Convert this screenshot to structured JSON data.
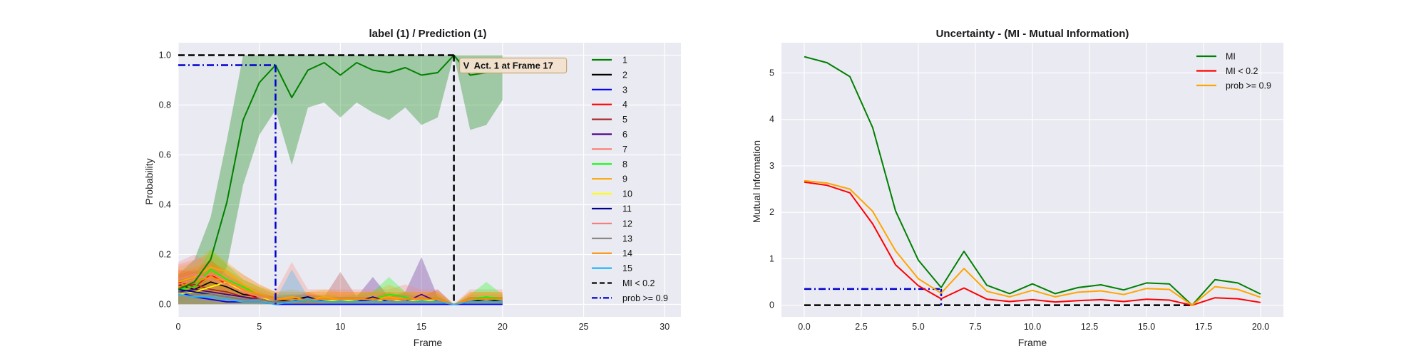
{
  "chart_data": [
    {
      "type": "line",
      "title": "label (1) / Prediction (1)",
      "xlabel": "Frame",
      "ylabel": "Probability",
      "xlim": [
        0,
        31
      ],
      "ylim": [
        -0.05,
        1.05
      ],
      "xticks": [
        "0",
        "5",
        "10",
        "15",
        "20",
        "25",
        "30"
      ],
      "yticks": [
        "0.0",
        "0.2",
        "0.4",
        "0.6",
        "0.8",
        "1.0"
      ],
      "grid": true,
      "legend_position": "right",
      "x": [
        0,
        1,
        2,
        3,
        4,
        5,
        6,
        7,
        8,
        9,
        10,
        11,
        12,
        13,
        14,
        15,
        16,
        17,
        18,
        19,
        20
      ],
      "series": [
        {
          "name": "1",
          "color": "#008000",
          "values": [
            0.06,
            0.09,
            0.18,
            0.41,
            0.74,
            0.89,
            0.96,
            0.83,
            0.94,
            0.97,
            0.92,
            0.97,
            0.94,
            0.93,
            0.95,
            0.92,
            0.93,
            1.0,
            0.92,
            0.93,
            0.96
          ],
          "band_low": [
            0.01,
            0.02,
            0.05,
            0.15,
            0.48,
            0.68,
            0.78,
            0.56,
            0.79,
            0.81,
            0.75,
            0.81,
            0.77,
            0.74,
            0.79,
            0.72,
            0.75,
            1.0,
            0.7,
            0.72,
            0.82
          ],
          "band_high": [
            0.12,
            0.18,
            0.35,
            0.66,
            1.0,
            1.0,
            1.0,
            1.0,
            1.0,
            1.0,
            1.0,
            1.0,
            1.0,
            1.0,
            1.0,
            1.0,
            1.0,
            1.0,
            1.0,
            1.0,
            1.0
          ]
        },
        {
          "name": "2",
          "color": "#000000",
          "values": [
            0.08,
            0.06,
            0.09,
            0.07,
            0.04,
            0.03,
            0.01,
            0.02,
            0.03,
            0.01,
            0.02,
            0.01,
            0.02,
            0.01,
            0.02,
            0.01,
            0.02,
            0.0,
            0.01,
            0.02,
            0.01
          ]
        },
        {
          "name": "3",
          "color": "#0000ff",
          "values": [
            0.05,
            0.03,
            0.02,
            0.01,
            0.01,
            0.01,
            0.0,
            0.0,
            0.0,
            0.0,
            0.0,
            0.0,
            0.0,
            0.0,
            0.0,
            0.0,
            0.0,
            0.0,
            0.0,
            0.0,
            0.0
          ]
        },
        {
          "name": "4",
          "color": "#ff0000",
          "values": [
            0.09,
            0.07,
            0.12,
            0.08,
            0.05,
            0.02,
            0.01,
            0.01,
            0.02,
            0.01,
            0.01,
            0.01,
            0.01,
            0.01,
            0.02,
            0.01,
            0.01,
            0.0,
            0.01,
            0.01,
            0.01
          ],
          "band_high": [
            0.14,
            0.13,
            0.18,
            0.12,
            0.08,
            0.05,
            0.03,
            0.04,
            0.04,
            0.03,
            0.03,
            0.03,
            0.03,
            0.03,
            0.04,
            0.03,
            0.03,
            0.0,
            0.03,
            0.03,
            0.03
          ]
        },
        {
          "name": "5",
          "color": "#a52a2a",
          "values": [
            0.07,
            0.08,
            0.06,
            0.05,
            0.03,
            0.02,
            0.01,
            0.01,
            0.02,
            0.01,
            0.02,
            0.01,
            0.01,
            0.02,
            0.01,
            0.01,
            0.01,
            0.0,
            0.01,
            0.01,
            0.01
          ],
          "band_high": [
            0.12,
            0.14,
            0.11,
            0.08,
            0.06,
            0.04,
            0.03,
            0.03,
            0.05,
            0.03,
            0.13,
            0.03,
            0.03,
            0.05,
            0.03,
            0.03,
            0.06,
            0.0,
            0.03,
            0.03,
            0.03
          ]
        },
        {
          "name": "6",
          "color": "#4b0082",
          "values": [
            0.05,
            0.06,
            0.05,
            0.04,
            0.03,
            0.02,
            0.01,
            0.01,
            0.02,
            0.01,
            0.01,
            0.01,
            0.02,
            0.01,
            0.01,
            0.04,
            0.01,
            0.0,
            0.01,
            0.01,
            0.01
          ],
          "band_high": [
            0.1,
            0.1,
            0.09,
            0.07,
            0.05,
            0.04,
            0.03,
            0.03,
            0.04,
            0.03,
            0.03,
            0.03,
            0.11,
            0.03,
            0.05,
            0.19,
            0.03,
            0.0,
            0.03,
            0.03,
            0.03
          ]
        },
        {
          "name": "7",
          "color": "#fa8072",
          "values": [
            0.08,
            0.1,
            0.12,
            0.1,
            0.06,
            0.04,
            0.02,
            0.03,
            0.02,
            0.02,
            0.02,
            0.02,
            0.02,
            0.02,
            0.03,
            0.02,
            0.02,
            0.0,
            0.02,
            0.02,
            0.02
          ],
          "band_high": [
            0.16,
            0.18,
            0.2,
            0.16,
            0.12,
            0.08,
            0.05,
            0.17,
            0.06,
            0.06,
            0.06,
            0.06,
            0.06,
            0.06,
            0.08,
            0.06,
            0.06,
            0.0,
            0.06,
            0.06,
            0.06
          ]
        },
        {
          "name": "8",
          "color": "#00ff00",
          "values": [
            0.06,
            0.07,
            0.14,
            0.1,
            0.07,
            0.04,
            0.02,
            0.02,
            0.01,
            0.02,
            0.01,
            0.02,
            0.02,
            0.04,
            0.03,
            0.01,
            0.02,
            0.0,
            0.02,
            0.03,
            0.02
          ],
          "band_high": [
            0.1,
            0.12,
            0.22,
            0.16,
            0.1,
            0.07,
            0.04,
            0.04,
            0.03,
            0.04,
            0.03,
            0.04,
            0.05,
            0.11,
            0.05,
            0.03,
            0.04,
            0.0,
            0.04,
            0.09,
            0.04
          ]
        },
        {
          "name": "9",
          "color": "#ffa500",
          "values": [
            0.09,
            0.11,
            0.15,
            0.13,
            0.08,
            0.04,
            0.02,
            0.03,
            0.02,
            0.03,
            0.02,
            0.02,
            0.02,
            0.03,
            0.02,
            0.02,
            0.02,
            0.0,
            0.02,
            0.02,
            0.02
          ],
          "band_high": [
            0.15,
            0.17,
            0.22,
            0.17,
            0.12,
            0.08,
            0.05,
            0.06,
            0.05,
            0.06,
            0.05,
            0.05,
            0.05,
            0.08,
            0.05,
            0.05,
            0.05,
            0.0,
            0.05,
            0.05,
            0.05
          ]
        },
        {
          "name": "10",
          "color": "#ffff00",
          "values": [
            0.04,
            0.05,
            0.07,
            0.09,
            0.05,
            0.03,
            0.01,
            0.01,
            0.01,
            0.01,
            0.02,
            0.01,
            0.01,
            0.02,
            0.01,
            0.02,
            0.01,
            0.0,
            0.01,
            0.01,
            0.01
          ]
        },
        {
          "name": "11",
          "color": "#00008b",
          "values": [
            0.06,
            0.05,
            0.04,
            0.03,
            0.02,
            0.02,
            0.01,
            0.01,
            0.03,
            0.01,
            0.01,
            0.01,
            0.03,
            0.01,
            0.01,
            0.01,
            0.01,
            0.0,
            0.01,
            0.01,
            0.01
          ]
        },
        {
          "name": "12",
          "color": "#f08080",
          "values": [
            0.1,
            0.12,
            0.1,
            0.08,
            0.05,
            0.03,
            0.02,
            0.02,
            0.02,
            0.02,
            0.02,
            0.02,
            0.02,
            0.02,
            0.02,
            0.02,
            0.02,
            0.0,
            0.02,
            0.02,
            0.02
          ],
          "band_high": [
            0.17,
            0.2,
            0.16,
            0.12,
            0.08,
            0.06,
            0.04,
            0.04,
            0.04,
            0.04,
            0.04,
            0.04,
            0.04,
            0.04,
            0.04,
            0.04,
            0.04,
            0.0,
            0.04,
            0.04,
            0.04
          ]
        },
        {
          "name": "13",
          "color": "#808080",
          "values": [
            0.05,
            0.04,
            0.04,
            0.03,
            0.02,
            0.02,
            0.01,
            0.01,
            0.01,
            0.01,
            0.01,
            0.01,
            0.01,
            0.01,
            0.01,
            0.01,
            0.01,
            0.0,
            0.01,
            0.01,
            0.01
          ]
        },
        {
          "name": "14",
          "color": "#ff8c00",
          "values": [
            0.07,
            0.09,
            0.11,
            0.09,
            0.06,
            0.04,
            0.02,
            0.02,
            0.02,
            0.02,
            0.02,
            0.02,
            0.02,
            0.02,
            0.02,
            0.02,
            0.02,
            0.0,
            0.02,
            0.02,
            0.02
          ],
          "band_high": [
            0.13,
            0.15,
            0.17,
            0.14,
            0.1,
            0.07,
            0.05,
            0.05,
            0.05,
            0.05,
            0.05,
            0.05,
            0.05,
            0.05,
            0.05,
            0.05,
            0.05,
            0.0,
            0.05,
            0.05,
            0.05
          ]
        },
        {
          "name": "15",
          "color": "#1eb4ff",
          "values": [
            0.04,
            0.03,
            0.03,
            0.02,
            0.01,
            0.01,
            0.0,
            0.01,
            0.02,
            0.01,
            0.01,
            0.01,
            0.01,
            0.01,
            0.01,
            0.01,
            0.01,
            0.0,
            0.01,
            0.01,
            0.01
          ],
          "band_high": [
            0.07,
            0.05,
            0.05,
            0.04,
            0.03,
            0.02,
            0.02,
            0.14,
            0.03,
            0.02,
            0.02,
            0.02,
            0.02,
            0.02,
            0.02,
            0.02,
            0.02,
            0.0,
            0.02,
            0.02,
            0.02
          ]
        }
      ],
      "reference_lines": [
        {
          "name": "MI < 0.2",
          "color": "#000000",
          "style": "dashed",
          "y": 1.0,
          "x_start": 0,
          "x_end": 17,
          "vertical_at": 17
        },
        {
          "name": "prob >= 0.9",
          "color": "#0000cc",
          "style": "dashdot",
          "y": 0.96,
          "x_start": 0,
          "x_end": 6,
          "vertical_at": 6
        }
      ],
      "annotation": {
        "x": 17,
        "y": 0.96,
        "text": "Act. 1 at Frame 17",
        "marker": "V"
      }
    },
    {
      "type": "line",
      "title": "Uncertainty - (MI - Mutual Information)",
      "xlabel": "Frame",
      "ylabel": "Mutual Information",
      "xlim": [
        -1.0,
        21.0
      ],
      "ylim": [
        -0.25,
        5.65
      ],
      "xticks": [
        "0.0",
        "2.5",
        "5.0",
        "7.5",
        "10.0",
        "12.5",
        "15.0",
        "17.5",
        "20.0"
      ],
      "yticks": [
        "0",
        "1",
        "2",
        "3",
        "4",
        "5"
      ],
      "grid": true,
      "legend_position": "top-right",
      "x": [
        0,
        1,
        2,
        3,
        4,
        5,
        6,
        7,
        8,
        9,
        10,
        11,
        12,
        13,
        14,
        15,
        16,
        17,
        18,
        19,
        20
      ],
      "series": [
        {
          "name": "MI",
          "color": "#008000",
          "values": [
            5.35,
            5.22,
            4.92,
            3.82,
            2.03,
            0.97,
            0.38,
            1.16,
            0.43,
            0.25,
            0.46,
            0.25,
            0.38,
            0.44,
            0.33,
            0.48,
            0.46,
            0.0,
            0.55,
            0.48,
            0.24
          ]
        },
        {
          "name": "MI < 0.2",
          "color": "#ff0000",
          "values": [
            2.65,
            2.58,
            2.42,
            1.75,
            0.87,
            0.42,
            0.14,
            0.37,
            0.13,
            0.08,
            0.12,
            0.07,
            0.1,
            0.12,
            0.08,
            0.13,
            0.11,
            0.0,
            0.16,
            0.14,
            0.06
          ]
        },
        {
          "name": "prob >= 0.9",
          "color": "#ffa500",
          "values": [
            2.68,
            2.63,
            2.5,
            2.02,
            1.17,
            0.57,
            0.26,
            0.79,
            0.3,
            0.18,
            0.32,
            0.18,
            0.28,
            0.31,
            0.23,
            0.36,
            0.34,
            0.0,
            0.4,
            0.34,
            0.17
          ]
        }
      ],
      "reference_lines": [
        {
          "color": "#000000",
          "style": "dashed",
          "y": 0.0,
          "x_start": 0,
          "x_end": 17
        },
        {
          "color": "#0000cc",
          "style": "dashdot",
          "y": 0.35,
          "x_start": 0,
          "x_end": 6,
          "vertical_at": 6
        }
      ]
    }
  ]
}
